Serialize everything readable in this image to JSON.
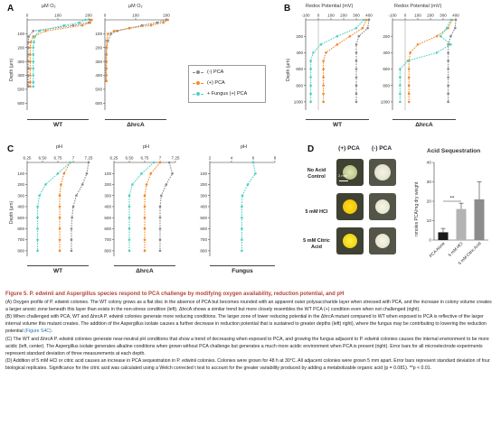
{
  "panels": {
    "A": {
      "label": "A",
      "xtitle": "µM O₂",
      "ylabel": "Depth (µm)",
      "subplots": [
        "WT",
        "ΔhrcA"
      ]
    },
    "B": {
      "label": "B",
      "xtitle": "Redox Potential (mV)",
      "subplots": [
        "WT",
        "ΔhrcA"
      ]
    },
    "C": {
      "label": "C",
      "xtitle": "pH",
      "ylabel": "Depth (µm)",
      "subplots": [
        "WT",
        "ΔhrcA",
        "Fungus"
      ]
    },
    "D": {
      "label": "D",
      "col_headers": [
        "(+) PCA",
        "(-) PCA"
      ],
      "row_labels": [
        "No Acid Control",
        "5 mM HCl",
        "5 mM Citric Acid"
      ],
      "scale_bar": "2 mm",
      "bar_title": "Acid Sequestration",
      "bar_ylabel": "nmoles PCA/mg dry weight",
      "significance": "**"
    }
  },
  "legend": {
    "items": [
      {
        "label": "(-) PCA",
        "color": "#8a8a8a"
      },
      {
        "label": "(+) PCA",
        "color": "#f08a2c"
      },
      {
        "label": "+ Fungus (+) PCA",
        "color": "#4fd1c0"
      }
    ]
  },
  "chart_data": [
    {
      "type": "line",
      "id": "A-WT",
      "orientation": "depth-profile",
      "xlim": [
        0,
        200
      ],
      "xticks": [
        0,
        100,
        200
      ],
      "ylim": [
        0,
        650
      ],
      "yticks": [
        100,
        200,
        300,
        400,
        500,
        600
      ],
      "y_inverted": true,
      "series": [
        {
          "name": "(-) PCA",
          "x": [
            205,
            200,
            150,
            20,
            5,
            4,
            3,
            3,
            3,
            3,
            3,
            3,
            3
          ],
          "y": [
            0,
            20,
            40,
            80,
            120,
            160,
            200,
            250,
            300,
            350,
            400,
            450,
            480
          ]
        },
        {
          "name": "(+) PCA",
          "x": [
            210,
            205,
            180,
            60,
            20,
            12,
            10,
            10,
            10,
            10,
            10,
            10,
            10
          ],
          "y": [
            0,
            20,
            40,
            80,
            120,
            160,
            200,
            250,
            300,
            350,
            400,
            450,
            480
          ]
        },
        {
          "name": "+ Fungus (+) PCA",
          "x": [
            190,
            170,
            120,
            40,
            25,
            22,
            20,
            20,
            20,
            20,
            20,
            20,
            20
          ],
          "y": [
            0,
            20,
            40,
            80,
            120,
            160,
            200,
            250,
            300,
            350,
            400,
            450,
            480
          ]
        }
      ]
    },
    {
      "type": "line",
      "id": "A-hrcA",
      "orientation": "depth-profile",
      "xlim": [
        0,
        200
      ],
      "xticks": [
        0,
        100,
        200
      ],
      "ylim": [
        0,
        650
      ],
      "yticks": [
        100,
        200,
        300,
        400,
        500,
        600
      ],
      "y_inverted": true,
      "series": [
        {
          "name": "(-) PCA",
          "x": [
            200,
            170,
            120,
            80,
            40,
            20,
            10,
            6,
            4,
            3,
            3,
            3,
            3
          ],
          "y": [
            0,
            20,
            40,
            60,
            80,
            100,
            150,
            200,
            250,
            300,
            350,
            400,
            440
          ]
        },
        {
          "name": "(+) PCA",
          "x": [
            205,
            190,
            150,
            80,
            30,
            10,
            6,
            5,
            5,
            5,
            5,
            5,
            5
          ],
          "y": [
            0,
            20,
            40,
            60,
            80,
            100,
            150,
            200,
            250,
            300,
            350,
            400,
            440
          ]
        }
      ]
    },
    {
      "type": "line",
      "id": "B-WT",
      "orientation": "depth-profile",
      "xlim": [
        -100,
        400
      ],
      "xticks": [
        -100,
        0,
        100,
        200,
        300,
        400
      ],
      "ylim": [
        0,
        1100
      ],
      "yticks": [
        200,
        400,
        600,
        800,
        1000
      ],
      "y_inverted": true,
      "series": [
        {
          "name": "(-) PCA",
          "x": [
            400,
            390,
            320,
            300,
            300,
            300,
            300,
            300,
            300,
            300,
            300
          ],
          "y": [
            0,
            100,
            200,
            300,
            400,
            500,
            600,
            700,
            800,
            900,
            1000
          ]
        },
        {
          "name": "(+) PCA",
          "x": [
            380,
            350,
            250,
            150,
            60,
            40,
            40,
            40,
            40,
            40,
            40
          ],
          "y": [
            0,
            100,
            200,
            300,
            400,
            500,
            600,
            700,
            800,
            900,
            1000
          ]
        },
        {
          "name": "+ Fungus (+) PCA",
          "x": [
            360,
            300,
            150,
            20,
            -40,
            -60,
            -60,
            -60,
            -60,
            -60,
            -60
          ],
          "y": [
            0,
            100,
            200,
            300,
            400,
            500,
            600,
            700,
            800,
            900,
            1000
          ]
        }
      ]
    },
    {
      "type": "line",
      "id": "B-hrcA",
      "orientation": "depth-profile",
      "xlim": [
        -100,
        400
      ],
      "xticks": [
        -100,
        0,
        100,
        200,
        300,
        400
      ],
      "ylim": [
        0,
        1100
      ],
      "yticks": [
        200,
        400,
        600,
        800,
        1000
      ],
      "y_inverted": true,
      "series": [
        {
          "name": "(-) PCA",
          "x": [
            400,
            395,
            360,
            340,
            340,
            340,
            340,
            340,
            340,
            340,
            340
          ],
          "y": [
            0,
            100,
            200,
            300,
            400,
            500,
            600,
            700,
            800,
            900,
            1000
          ]
        },
        {
          "name": "(+) PCA",
          "x": [
            370,
            340,
            250,
            100,
            40,
            30,
            30,
            30,
            30,
            30,
            30
          ],
          "y": [
            0,
            100,
            200,
            300,
            400,
            500,
            600,
            700,
            800,
            900,
            1000
          ]
        },
        {
          "name": "+ Fungus (+) PCA",
          "x": [
            360,
            330,
            280,
            360,
            250,
            20,
            -40,
            -40,
            -40,
            -40,
            -40
          ],
          "y": [
            0,
            100,
            200,
            300,
            400,
            500,
            600,
            700,
            800,
            900,
            1000
          ]
        }
      ]
    },
    {
      "type": "line",
      "id": "C-WT",
      "orientation": "depth-profile",
      "xlim": [
        6.25,
        7.25
      ],
      "xticks": [
        6.25,
        6.5,
        6.75,
        7.0,
        7.25
      ],
      "ylim": [
        0,
        850
      ],
      "yticks": [
        100,
        200,
        300,
        400,
        500,
        600,
        700,
        800
      ],
      "y_inverted": true,
      "series": [
        {
          "name": "(-) PCA",
          "x": [
            7.25,
            7.22,
            7.15,
            7.05,
            7.0,
            6.98,
            6.97,
            6.97,
            6.97
          ],
          "y": [
            0,
            100,
            200,
            300,
            400,
            500,
            600,
            700,
            800
          ]
        },
        {
          "name": "(+) PCA",
          "x": [
            6.95,
            6.85,
            6.8,
            6.78,
            6.78,
            6.78,
            6.78,
            6.78,
            6.78
          ],
          "y": [
            0,
            100,
            200,
            300,
            400,
            500,
            600,
            700,
            800
          ]
        },
        {
          "name": "+ Fungus (+) PCA",
          "x": [
            6.95,
            6.75,
            6.55,
            6.45,
            6.42,
            6.42,
            6.42,
            6.42,
            6.42
          ],
          "y": [
            0,
            100,
            200,
            300,
            400,
            500,
            600,
            700,
            800
          ]
        }
      ]
    },
    {
      "type": "line",
      "id": "C-hrcA",
      "orientation": "depth-profile",
      "xlim": [
        6.25,
        7.25
      ],
      "xticks": [
        6.25,
        6.5,
        6.75,
        7.0,
        7.25
      ],
      "ylim": [
        0,
        850
      ],
      "yticks": [
        100,
        200,
        300,
        400,
        500,
        600,
        700,
        800
      ],
      "y_inverted": true,
      "series": [
        {
          "name": "(-) PCA",
          "x": [
            7.15,
            7.2,
            7.1,
            7.02,
            7.0,
            7.0,
            7.0,
            7.0,
            7.0
          ],
          "y": [
            0,
            100,
            200,
            300,
            400,
            500,
            600,
            700,
            800
          ]
        },
        {
          "name": "(+) PCA",
          "x": [
            7.0,
            6.85,
            6.78,
            6.75,
            6.75,
            6.75,
            6.75,
            6.75,
            6.75
          ],
          "y": [
            0,
            100,
            200,
            300,
            400,
            500,
            600,
            700,
            800
          ]
        },
        {
          "name": "+ Fungus (+) PCA",
          "x": [
            6.9,
            6.7,
            6.55,
            6.5,
            6.5,
            6.5,
            6.5,
            6.5,
            6.5
          ],
          "y": [
            0,
            100,
            200,
            300,
            400,
            500,
            600,
            700,
            800
          ]
        }
      ]
    },
    {
      "type": "line",
      "id": "C-Fungus",
      "orientation": "depth-profile",
      "xlim": [
        2,
        8
      ],
      "xticks": [
        2,
        4,
        6,
        8
      ],
      "ylim": [
        0,
        850
      ],
      "yticks": [
        100,
        200,
        300,
        400,
        500,
        600,
        700,
        800
      ],
      "y_inverted": true,
      "series": [
        {
          "name": "+ Fungus (+) PCA",
          "x": [
            6.0,
            6.2,
            5.5,
            5.0,
            4.95,
            4.95,
            4.95,
            4.95,
            4.95
          ],
          "y": [
            0,
            100,
            200,
            300,
            400,
            500,
            600,
            700,
            800
          ]
        }
      ]
    },
    {
      "type": "bar",
      "id": "D-acid",
      "title": "Acid Sequestration",
      "ylabel": "nmoles PCA/mg dry weight",
      "categories": [
        "PCA Alone",
        "5 mM HCl",
        "5 mM Citric Acid"
      ],
      "values": [
        4,
        16,
        21
      ],
      "errors": [
        2,
        3,
        9
      ],
      "ylim": [
        0,
        40
      ],
      "yticks": [
        0,
        10,
        20,
        30,
        40
      ],
      "colors": [
        "#1a1a1a",
        "#b3b3b3",
        "#8c8c8c"
      ]
    }
  ],
  "caption": {
    "title": "Figure 5.  P. edwinii and Aspergillus species respond to PCA challenge by modifying oxygen availability, reduction potential, and pH",
    "paragraphs": [
      "(A) Oxygen profile of P. edwinii colonies. The WT colony grows as a flat disc in the absence of PCA but becomes rounded with an apparent outer polysaccharide layer when stressed with PCA, and the increase in colony volume creates a larger anoxic zone beneath this layer than exists in the non-stress condition (left). ΔhrcA shows a similar trend but more closely resembles the WT PCA (+) condition even when not challenged (right).",
      "(B) When challenged with PCA, WT and ΔhrcA P. edwinii colonies generate more reducing conditions. The larger zone of lower reducing potential in the ΔhrcA mutant compared to WT when exposed to PCA is reflective of the larger internal volume this mutant creates. The addition of the Aspergillus isolate causes a further decrease in reduction potential that is sustained to greater depths (left) right), where the fungus may be contributing to lowering the reduction potential",
      "(C) The WT and ΔhrcA P. edwinii colonies generate near-neutral pH conditions that show a trend of decreasing when exposed to PCA, and growing the fungus adjacent to P. edwinii colonies causes the internal environment to be more acidic (left, center). The Aspergillus isolate generates alkaline conditions when grown without PCA challenge but generates a much more acidic environment when PCA is present (right). Error bars for all microelectrode experiments represent standard deviation of three measurements at each depth.",
      "(D) Addition of 5 mM HCl or citric acid causes an increase in PCA sequestration in P. edwinii colonies. Colonies were grown for 48 h at 30°C. All adjacent colonies were grown 5 mm apart. Error bars represent standard deviation of four biological replicates. Significance for the citric acid was calculated using a Welch corrected t test to account for the greater variability produced by adding a metabolizable organic acid (p = 0.081). **p < 0.01."
    ],
    "figref": "(Figure S4C)."
  }
}
